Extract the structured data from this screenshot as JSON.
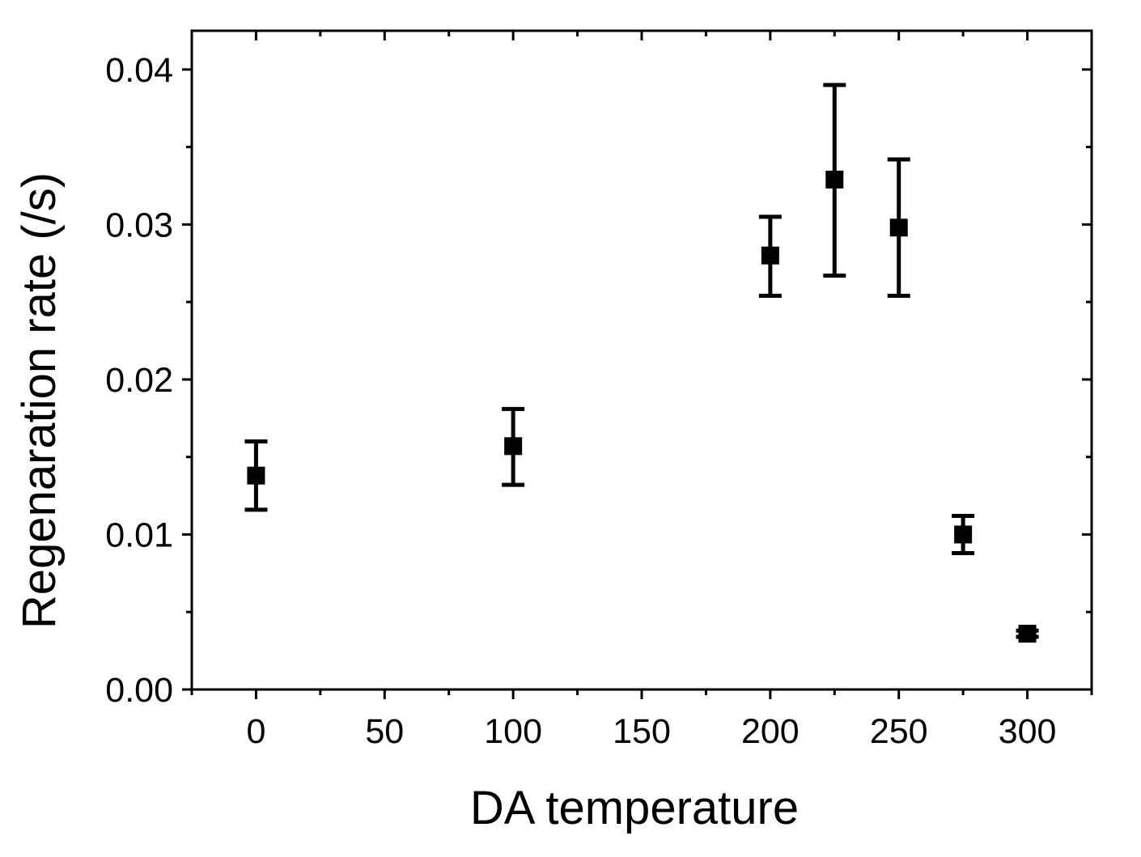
{
  "chart_data": {
    "type": "scatter",
    "title": "",
    "xlabel": "DA temperature",
    "ylabel": "Regenaration rate (/s)",
    "xlim": [
      -25,
      325
    ],
    "ylim": [
      0,
      0.0425
    ],
    "grid": false,
    "legend": "none",
    "x_ticks": [
      0,
      50,
      100,
      150,
      200,
      250,
      300
    ],
    "x_tick_labels": [
      "0",
      "50",
      "100",
      "150",
      "200",
      "250",
      "300"
    ],
    "x_minor_ticks": [
      -25,
      25,
      75,
      125,
      175,
      225,
      275,
      325
    ],
    "y_ticks": [
      0,
      0.01,
      0.02,
      0.03,
      0.04
    ],
    "y_tick_labels": [
      "0.00",
      "0.01",
      "0.02",
      "0.03",
      "0.04"
    ],
    "y_minor_ticks": [
      0.005,
      0.015,
      0.025,
      0.035
    ],
    "series": [
      {
        "marker": "square",
        "color": "#000000",
        "points": [
          {
            "x": 0,
            "y": 0.0138,
            "err_low": 0.0116,
            "err_high": 0.016
          },
          {
            "x": 100,
            "y": 0.0157,
            "err_low": 0.0132,
            "err_high": 0.0181
          },
          {
            "x": 200,
            "y": 0.028,
            "err_low": 0.0254,
            "err_high": 0.0305
          },
          {
            "x": 225,
            "y": 0.0329,
            "err_low": 0.0267,
            "err_high": 0.039
          },
          {
            "x": 250,
            "y": 0.0298,
            "err_low": 0.0254,
            "err_high": 0.0342
          },
          {
            "x": 275,
            "y": 0.01,
            "err_low": 0.0088,
            "err_high": 0.0112
          },
          {
            "x": 300,
            "y": 0.0036,
            "err_low": 0.0034,
            "err_high": 0.0038
          }
        ]
      }
    ]
  }
}
